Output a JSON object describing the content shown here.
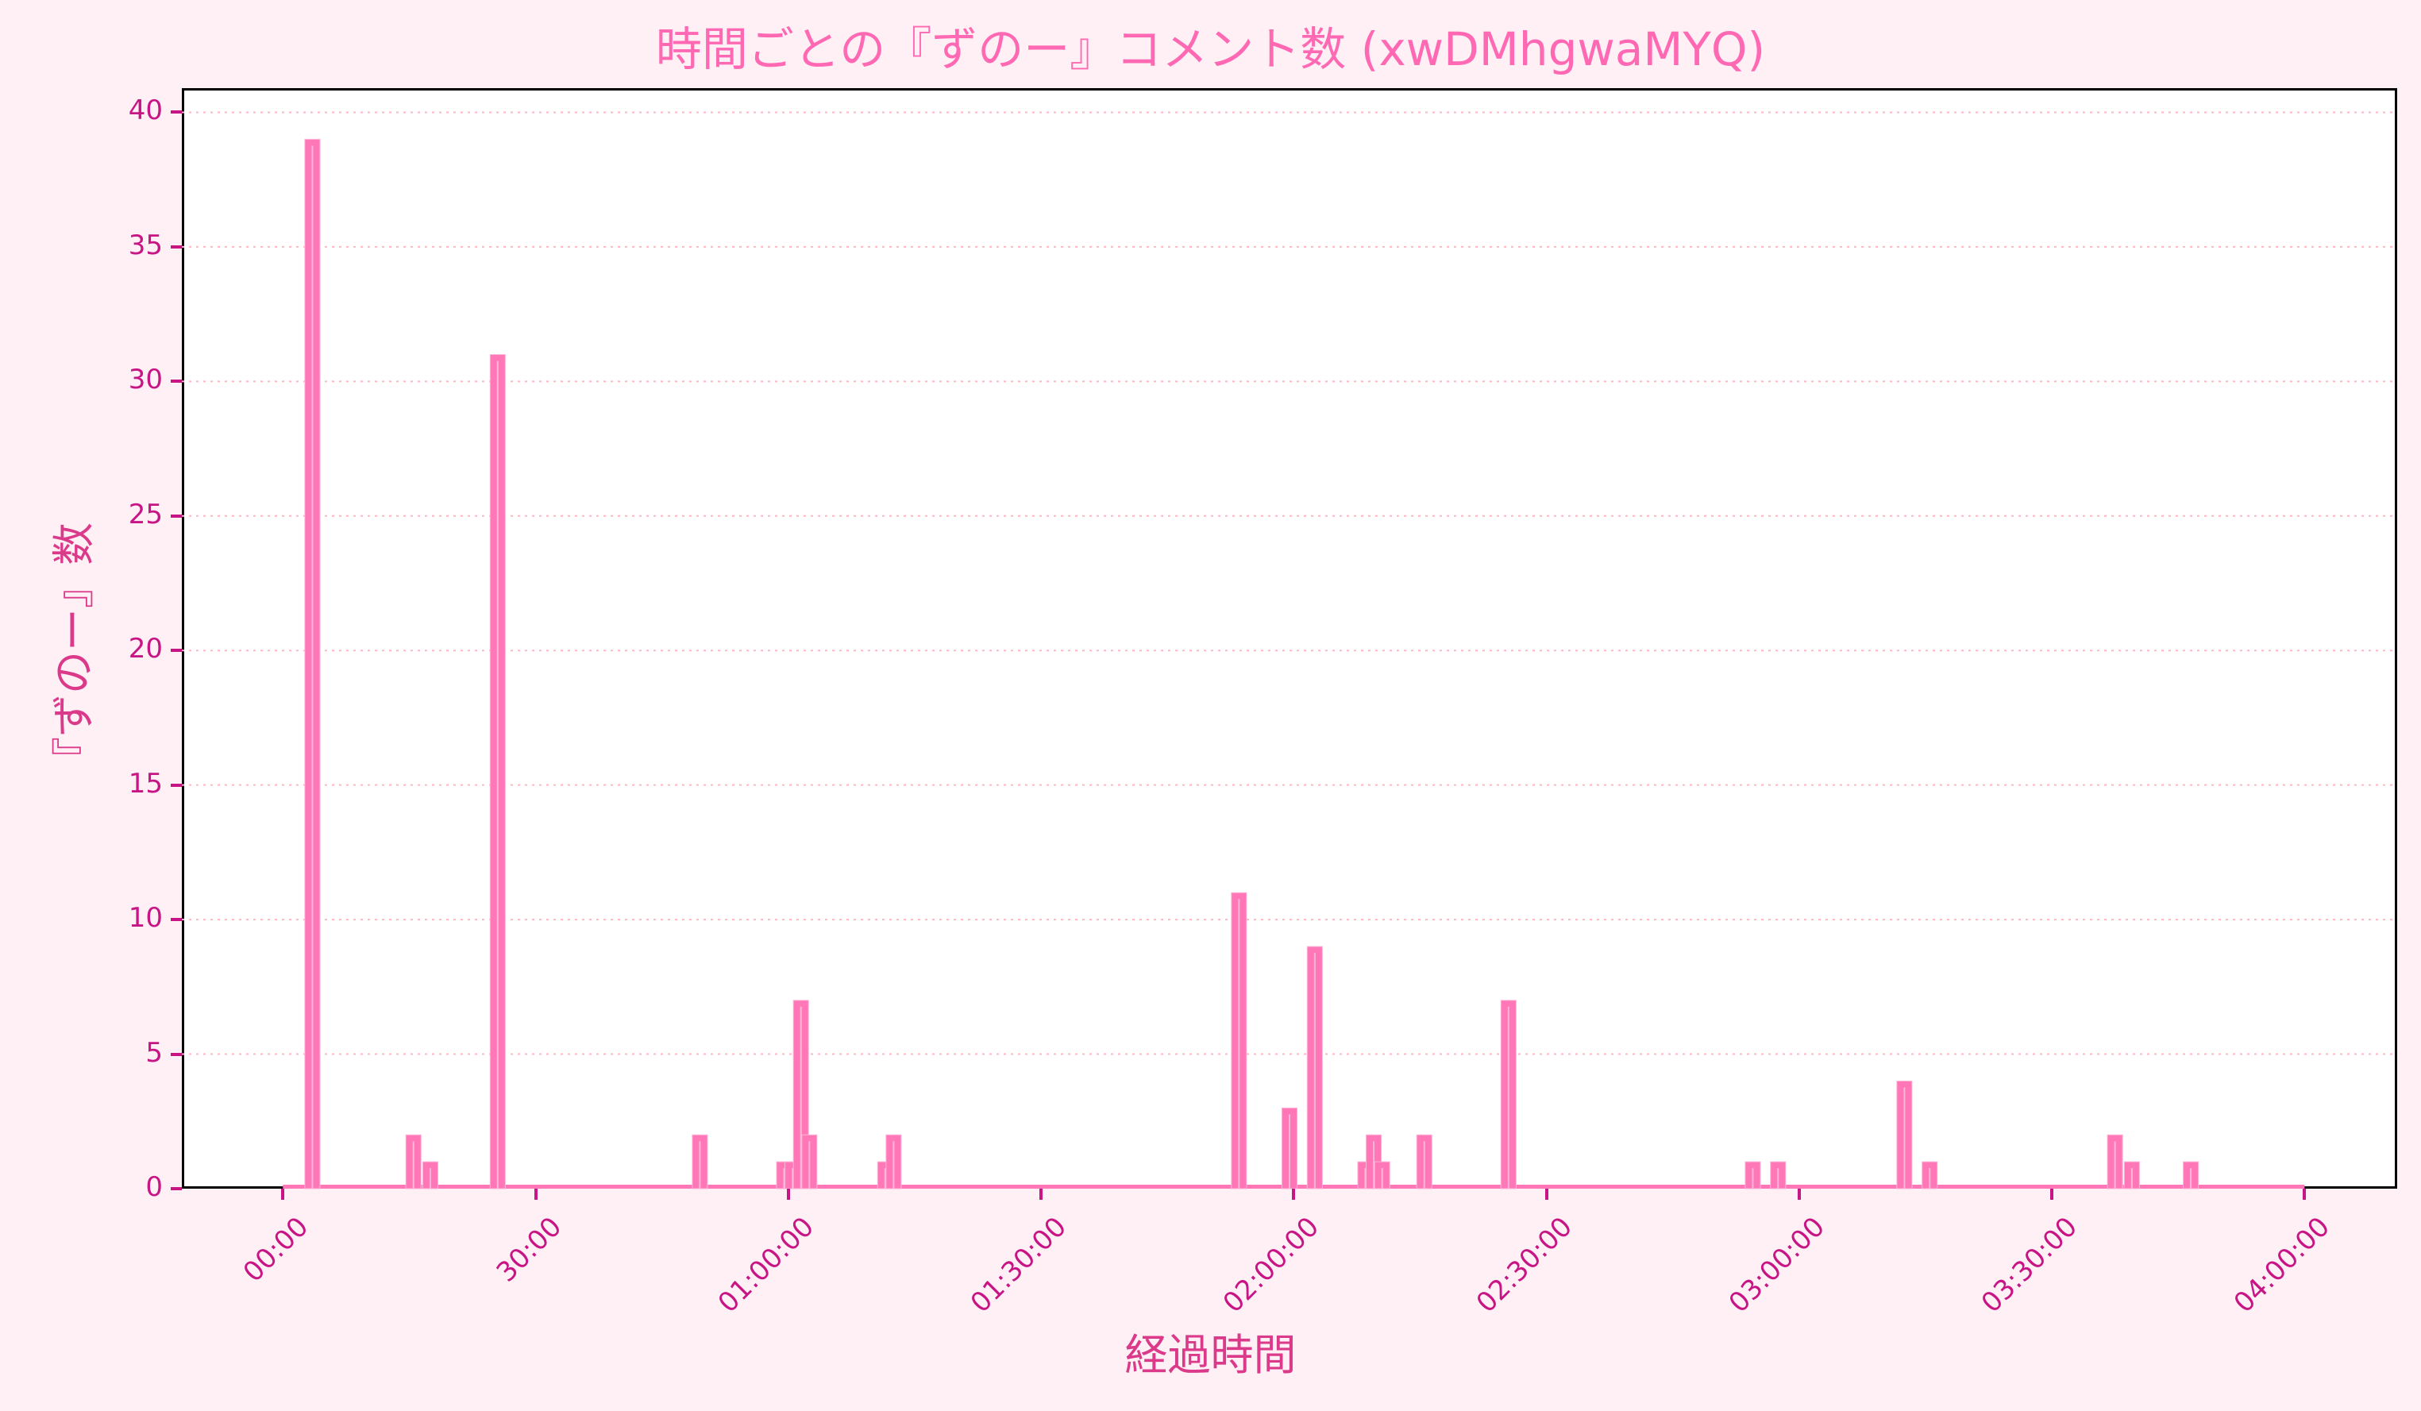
{
  "chart_data": {
    "type": "bar",
    "title": "時間ごとの『ずのー』コメント数 (xwDMhgwaMYQ)",
    "xlabel": "経過時間",
    "ylabel": "『ずのー』数",
    "ylim": [
      0,
      40.9
    ],
    "xlim_minutes": [
      -12,
      251
    ],
    "grid": {
      "axis": "y",
      "style": "dotted",
      "color": "#ffb6c1"
    },
    "yticks": [
      0,
      5,
      10,
      15,
      20,
      25,
      30,
      35,
      40
    ],
    "xticks": [
      {
        "minute": 0,
        "label": "00:00"
      },
      {
        "minute": 30,
        "label": "30:00"
      },
      {
        "minute": 60,
        "label": "01:00:00"
      },
      {
        "minute": 90,
        "label": "01:30:00"
      },
      {
        "minute": 120,
        "label": "02:00:00"
      },
      {
        "minute": 150,
        "label": "02:30:00"
      },
      {
        "minute": 180,
        "label": "03:00:00"
      },
      {
        "minute": 210,
        "label": "03:30:00"
      },
      {
        "minute": 240,
        "label": "04:00:00"
      }
    ],
    "bin_minutes": 1,
    "zero_line_range_minutes": [
      0,
      240
    ],
    "points": [
      {
        "minute": 3,
        "value": 39
      },
      {
        "minute": 15,
        "value": 2
      },
      {
        "minute": 17,
        "value": 1
      },
      {
        "minute": 25,
        "value": 31
      },
      {
        "minute": 49,
        "value": 2
      },
      {
        "minute": 59,
        "value": 1
      },
      {
        "minute": 60,
        "value": 1
      },
      {
        "minute": 61,
        "value": 7
      },
      {
        "minute": 62,
        "value": 2
      },
      {
        "minute": 71,
        "value": 1
      },
      {
        "minute": 72,
        "value": 2
      },
      {
        "minute": 113,
        "value": 11
      },
      {
        "minute": 119,
        "value": 3
      },
      {
        "minute": 122,
        "value": 9
      },
      {
        "minute": 128,
        "value": 1
      },
      {
        "minute": 129,
        "value": 2
      },
      {
        "minute": 130,
        "value": 1
      },
      {
        "minute": 135,
        "value": 2
      },
      {
        "minute": 145,
        "value": 7
      },
      {
        "minute": 174,
        "value": 1
      },
      {
        "minute": 177,
        "value": 1
      },
      {
        "minute": 192,
        "value": 4
      },
      {
        "minute": 195,
        "value": 1
      },
      {
        "minute": 217,
        "value": 2
      },
      {
        "minute": 219,
        "value": 1
      },
      {
        "minute": 226,
        "value": 1
      }
    ]
  },
  "colors": {
    "background": "#fff0f5",
    "plot_bg": "#ffffff",
    "bar": "#ff77b7",
    "bar_edge": "#ffb6d9",
    "title": "#ff69b4",
    "tick": "#c71585",
    "axis_label": "#db3a8a",
    "grid": "#ffb6c1"
  }
}
